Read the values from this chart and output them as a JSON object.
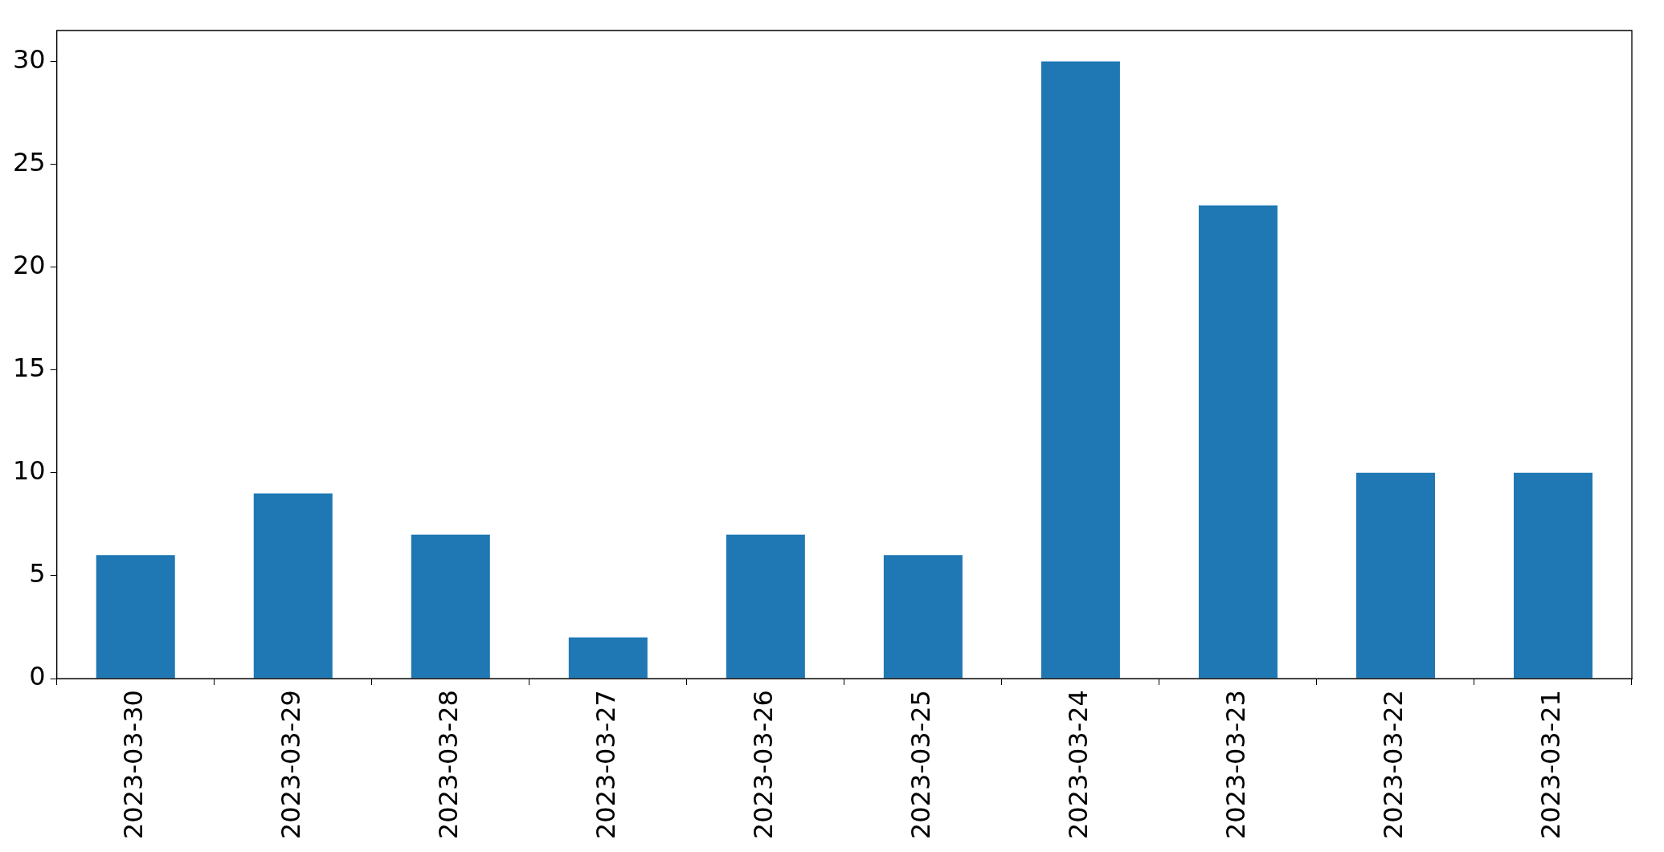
{
  "chart_data": {
    "type": "bar",
    "categories": [
      "2023-03-30",
      "2023-03-29",
      "2023-03-28",
      "2023-03-27",
      "2023-03-26",
      "2023-03-25",
      "2023-03-24",
      "2023-03-23",
      "2023-03-22",
      "2023-03-21"
    ],
    "values": [
      6,
      9,
      7,
      2,
      7,
      6,
      30,
      23,
      10,
      10
    ],
    "color": "#1f77b4",
    "ylim": [
      0,
      31.5
    ],
    "yticks": [
      0,
      5,
      10,
      15,
      20,
      25,
      30
    ]
  }
}
